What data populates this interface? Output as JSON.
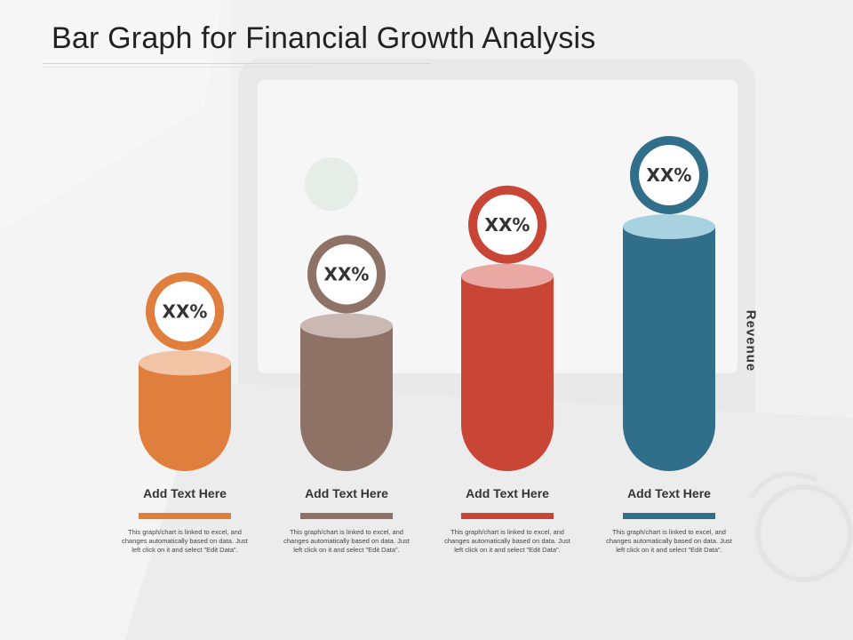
{
  "title": "Bar Graph for Financial Growth Analysis",
  "chart_data": {
    "type": "bar",
    "categories": [
      "Add Text Here",
      "Add Text Here",
      "Add Text Here",
      "Add Text Here"
    ],
    "values": [
      1.0,
      1.6,
      2.4,
      3.2
    ],
    "data_labels": [
      "XX%",
      "XX%",
      "XX%",
      "XX%"
    ],
    "descriptions": [
      "This graph/chart is linked to excel, and changes automatically based on data. Just left click on it and select \"Edit Data\".",
      "This graph/chart is linked to excel, and changes automatically based on data. Just left click on it and select \"Edit Data\".",
      "This graph/chart is linked to excel, and changes automatically based on data. Just left click on it and select \"Edit Data\".",
      "This graph/chart is linked to excel, and changes automatically based on data. Just left click on it and select \"Edit Data\"."
    ],
    "ylabel": "Revenue",
    "colors": [
      "#e07f3d",
      "#8e7266",
      "#c94535",
      "#316e8a"
    ],
    "top_colors": [
      "#f2c3a4",
      "#c9b9b2",
      "#e9a8a3",
      "#a9d2e1"
    ],
    "ylim": [
      0,
      3.2
    ],
    "grid": false,
    "legend": "none"
  }
}
